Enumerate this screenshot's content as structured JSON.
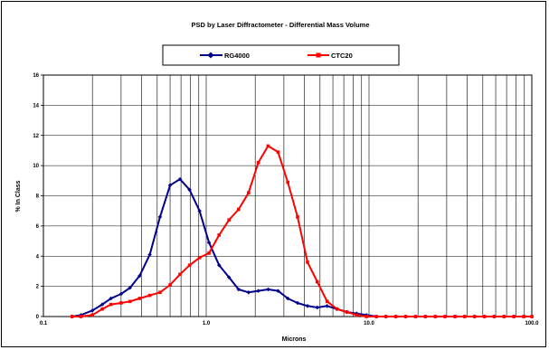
{
  "chart_data": {
    "type": "line",
    "title": "PSD by Laser Diffractometer - Differential Mass Volume",
    "xlabel": "Microns",
    "ylabel": "% In Class",
    "xscale": "log",
    "xlim": [
      0.1,
      100.0
    ],
    "ylim": [
      0,
      16
    ],
    "grid": true,
    "legend": "top",
    "x_tick_labels": [
      "0.1",
      "1.0",
      "10.0",
      "100.0"
    ],
    "y_tick_labels": [
      "0",
      "2",
      "4",
      "6",
      "8",
      "10",
      "12",
      "14",
      "16"
    ],
    "series": [
      {
        "name": "RG4000",
        "color": "#00008B",
        "marker": "diamond",
        "x": [
          0.15,
          0.17,
          0.2,
          0.23,
          0.26,
          0.3,
          0.34,
          0.39,
          0.45,
          0.52,
          0.6,
          0.69,
          0.79,
          0.91,
          1.04,
          1.2,
          1.38,
          1.58,
          1.82,
          2.09,
          2.4,
          2.76,
          3.17,
          3.64,
          4.19,
          4.81,
          5.53,
          6.36,
          7.31,
          8.4,
          9.65,
          11.1,
          12.7,
          14.6,
          16.8,
          19.3,
          22.2,
          25.5,
          29.3,
          33.7,
          38.7,
          44.5,
          51.1,
          58.8,
          67.5,
          77.6,
          89.2,
          100.0
        ],
        "y": [
          0,
          0.1,
          0.4,
          0.8,
          1.2,
          1.5,
          1.9,
          2.7,
          4.1,
          6.6,
          8.7,
          9.1,
          8.4,
          7.0,
          4.9,
          3.4,
          2.6,
          1.8,
          1.6,
          1.7,
          1.8,
          1.7,
          1.2,
          0.9,
          0.7,
          0.6,
          0.7,
          0.5,
          0.3,
          0.2,
          0.1,
          0,
          0,
          0,
          0,
          0,
          0,
          0,
          0,
          0,
          0,
          0,
          0,
          0,
          0,
          0,
          0,
          0
        ]
      },
      {
        "name": "CTC20",
        "color": "#FF0000",
        "marker": "square",
        "x": [
          0.15,
          0.17,
          0.2,
          0.23,
          0.26,
          0.3,
          0.34,
          0.39,
          0.45,
          0.52,
          0.6,
          0.69,
          0.79,
          0.91,
          1.04,
          1.2,
          1.38,
          1.58,
          1.82,
          2.09,
          2.4,
          2.76,
          3.17,
          3.64,
          4.19,
          4.81,
          5.53,
          6.36,
          7.31,
          8.4,
          9.65,
          11.1,
          12.7,
          14.6,
          16.8,
          19.3,
          22.2,
          25.5,
          29.3,
          33.7,
          38.7,
          44.5,
          51.1,
          58.8,
          67.5,
          77.6,
          89.2,
          100.0
        ],
        "y": [
          0,
          0,
          0.1,
          0.5,
          0.8,
          0.9,
          1.0,
          1.2,
          1.4,
          1.6,
          2.1,
          2.8,
          3.4,
          3.9,
          4.2,
          5.4,
          6.4,
          7.1,
          8.2,
          10.2,
          11.3,
          10.9,
          8.9,
          6.6,
          3.6,
          2.3,
          1.0,
          0.5,
          0.3,
          0.1,
          0,
          0,
          0,
          0,
          0,
          0,
          0,
          0,
          0,
          0,
          0,
          0,
          0,
          0,
          0,
          0,
          0,
          0
        ]
      }
    ]
  }
}
